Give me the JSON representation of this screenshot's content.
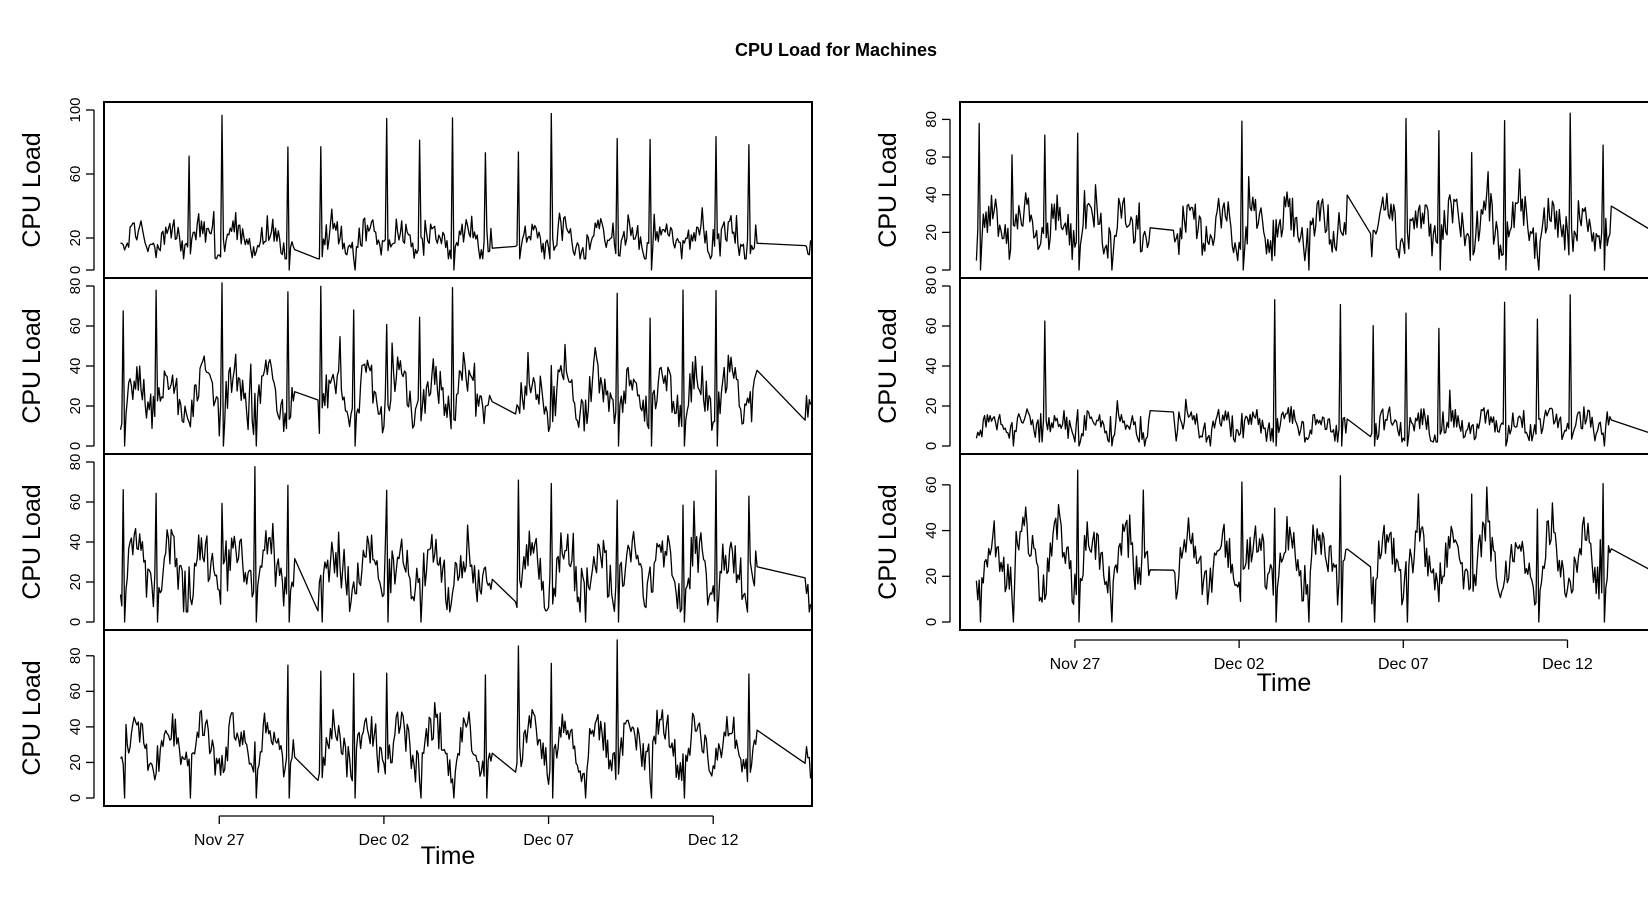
{
  "title": "CPU Load for Machines",
  "x_axis_label": "Time",
  "y_axis_label": "CPU Load",
  "x_tick_labels": [
    "Nov 27",
    "Dec 02",
    "Dec 07",
    "Dec 12"
  ],
  "chart_data": {
    "type": "line",
    "title": "CPU Load for Machines",
    "xlabel": "Time",
    "ylabel": "CPU Load",
    "x_range": [
      "Nov 23 12:00",
      "Dec 15 00:00"
    ],
    "x_ticks": [
      "Nov 27",
      "Dec 02",
      "Dec 07",
      "Dec 12"
    ],
    "series_start": "Nov 24 00:00",
    "series_end": "Dec 14 23:00",
    "sample_interval_hours": 1,
    "grid": false,
    "legend": "none",
    "line_color": "#000000",
    "gaps": [
      [
        "Nov 29 08:00",
        "Nov 30 00:00"
      ],
      [
        "Dec 05 08:00",
        "Dec 06 00:00"
      ],
      [
        "Dec 13 08:00",
        "Dec 14 18:00"
      ]
    ],
    "series": [
      {
        "ylim": [
          0,
          100
        ],
        "yticks": [
          0,
          20,
          60,
          100
        ],
        "baseline": 22,
        "variation": 8,
        "peak": 98,
        "min": 7
      },
      {
        "ylim": [
          0,
          80
        ],
        "yticks": [
          0,
          20,
          40,
          60,
          80
        ],
        "baseline": 30,
        "variation": 10,
        "peak": 84,
        "min": 5
      },
      {
        "ylim": [
          0,
          80
        ],
        "yticks": [
          0,
          20,
          40,
          60,
          80
        ],
        "baseline": 30,
        "variation": 12,
        "peak": 78,
        "min": 5
      },
      {
        "ylim": [
          0,
          90
        ],
        "yticks": [
          0,
          20,
          40,
          60,
          80
        ],
        "baseline": 35,
        "variation": 10,
        "peak": 90,
        "min": 6
      },
      {
        "ylim": [
          0,
          85
        ],
        "yticks": [
          0,
          20,
          40,
          60,
          80
        ],
        "baseline": 27,
        "variation": 10,
        "peak": 84,
        "min": 5
      },
      {
        "ylim": [
          0,
          80
        ],
        "yticks": [
          0,
          20,
          40,
          60,
          80
        ],
        "baseline": 12,
        "variation": 6,
        "peak": 78,
        "min": 2
      },
      {
        "ylim": [
          0,
          70
        ],
        "yticks": [
          0,
          20,
          40,
          60
        ],
        "baseline": 32,
        "variation": 9,
        "peak": 68,
        "min": 6
      }
    ]
  }
}
